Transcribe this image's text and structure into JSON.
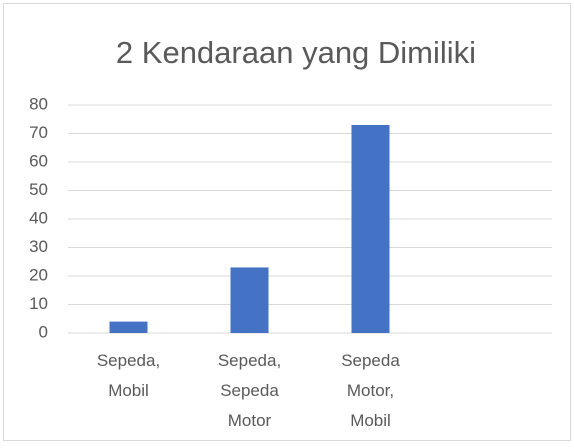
{
  "chart_data": {
    "type": "bar",
    "title": "2 Kendaraan yang Dimiliki",
    "categories": [
      "Sepeda, Mobil",
      "Sepeda, Sepeda Motor",
      "Sepeda Motor, Mobil",
      null
    ],
    "values": [
      4,
      23,
      73,
      null
    ],
    "color": "#4472c4",
    "ylim": [
      0,
      80
    ],
    "yticks": [
      0,
      10,
      20,
      30,
      40,
      50,
      60,
      70,
      80
    ],
    "grid": true
  }
}
